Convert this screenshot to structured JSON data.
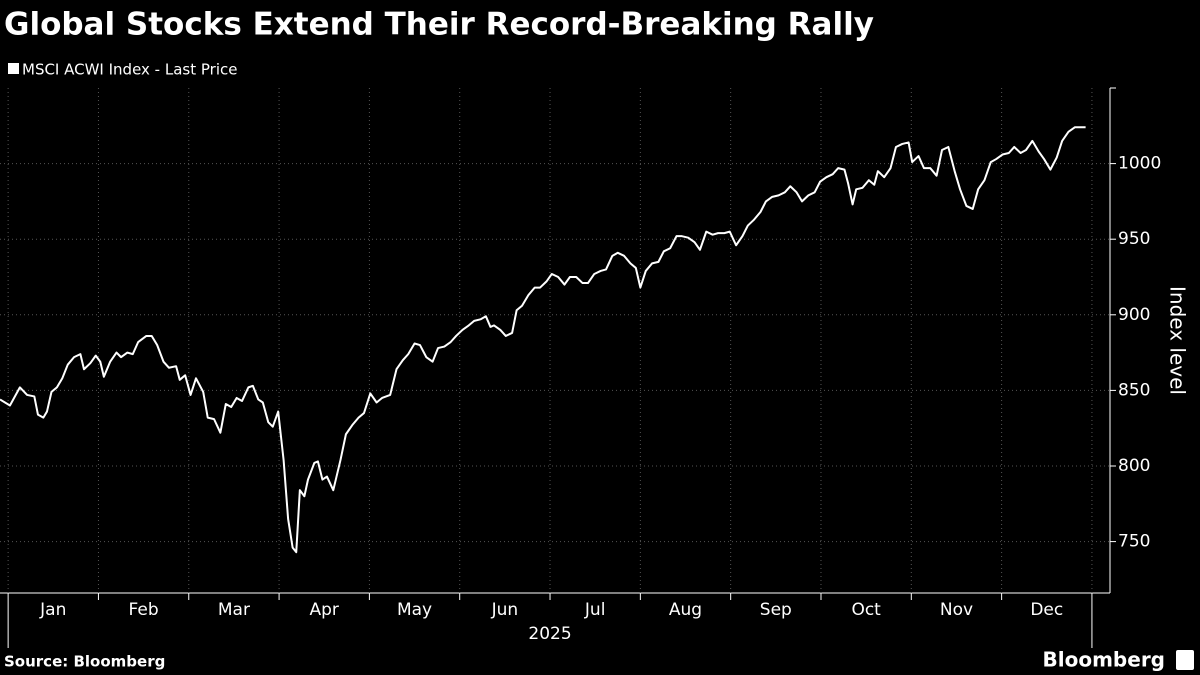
{
  "chart_data": {
    "type": "line",
    "title": "Global Stocks Extend Their Record-Breaking Rally",
    "source": "Source: Bloomberg",
    "brand": "Bloomberg",
    "y_label": "Index level",
    "x_label": "2025",
    "categories": [
      "Jan",
      "Feb",
      "Mar",
      "Apr",
      "May",
      "Jun",
      "Jul",
      "Aug",
      "Sep",
      "Oct",
      "Nov",
      "Dec"
    ],
    "xlim": [
      -0.09,
      12.2
    ],
    "xticks": [
      0,
      1,
      2,
      3,
      4,
      5,
      6,
      7,
      8,
      9,
      10,
      11,
      12
    ],
    "ylim": [
      716,
      1050
    ],
    "yticks": [
      750,
      800,
      850,
      900,
      950,
      1000
    ],
    "grid": true,
    "legend": "top-left",
    "series": [
      {
        "name": "MSCI ACWI Index - Last Price",
        "color": "#ffffff",
        "x": [
          -0.09,
          0.02,
          0.13,
          0.21,
          0.29,
          0.33,
          0.39,
          0.43,
          0.48,
          0.54,
          0.6,
          0.66,
          0.73,
          0.8,
          0.84,
          0.91,
          0.97,
          1.02,
          1.06,
          1.13,
          1.2,
          1.25,
          1.32,
          1.38,
          1.44,
          1.53,
          1.59,
          1.65,
          1.72,
          1.78,
          1.86,
          1.9,
          1.96,
          2.02,
          2.08,
          2.16,
          2.21,
          2.28,
          2.35,
          2.41,
          2.47,
          2.53,
          2.59,
          2.66,
          2.71,
          2.77,
          2.82,
          2.88,
          2.93,
          2.99,
          3.05,
          3.1,
          3.15,
          3.19,
          3.23,
          3.28,
          3.32,
          3.39,
          3.43,
          3.48,
          3.53,
          3.6,
          3.68,
          3.74,
          3.81,
          3.88,
          3.94,
          4.01,
          4.08,
          4.14,
          4.23,
          4.3,
          4.37,
          4.43,
          4.5,
          4.56,
          4.63,
          4.7,
          4.76,
          4.83,
          4.9,
          4.96,
          5.03,
          5.1,
          5.16,
          5.23,
          5.29,
          5.34,
          5.38,
          5.45,
          5.51,
          5.58,
          5.63,
          5.69,
          5.76,
          5.83,
          5.89,
          5.96,
          6.02,
          6.09,
          6.16,
          6.22,
          6.29,
          6.36,
          6.42,
          6.49,
          6.56,
          6.62,
          6.69,
          6.75,
          6.82,
          6.89,
          6.95,
          7.0,
          7.06,
          7.13,
          7.2,
          7.26,
          7.33,
          7.4,
          7.46,
          7.53,
          7.6,
          7.66,
          7.73,
          7.8,
          7.86,
          7.93,
          7.99,
          8.06,
          8.13,
          8.19,
          8.26,
          8.33,
          8.39,
          8.46,
          8.53,
          8.6,
          8.66,
          8.73,
          8.79,
          8.86,
          8.93,
          8.99,
          9.06,
          9.13,
          9.19,
          9.26,
          9.3,
          9.35,
          9.39,
          9.46,
          9.53,
          9.59,
          9.63,
          9.7,
          9.77,
          9.83,
          9.9,
          9.97,
          10.01,
          10.08,
          10.14,
          10.21,
          10.28,
          10.34,
          10.41,
          10.48,
          10.54,
          10.61,
          10.68,
          10.74,
          10.81,
          10.88,
          10.94,
          11.01,
          11.08,
          11.14,
          11.21,
          11.27,
          11.34,
          11.41,
          11.47,
          11.54,
          11.61,
          11.67,
          11.74,
          11.81,
          11.87,
          11.93
        ],
        "values": [
          844,
          840,
          852,
          847,
          846,
          834,
          832,
          836,
          849,
          852,
          858,
          867,
          872,
          874,
          864,
          868,
          873,
          869,
          859,
          869,
          875,
          872,
          875,
          874,
          882,
          886,
          886,
          880,
          869,
          865,
          866,
          857,
          860,
          847,
          858,
          849,
          832,
          831,
          822,
          841,
          839,
          845,
          843,
          852,
          853,
          844,
          842,
          829,
          826,
          836,
          804,
          765,
          746,
          743,
          784,
          780,
          791,
          802,
          803,
          791,
          793,
          784,
          804,
          821,
          827,
          832,
          835,
          848,
          842,
          845,
          847,
          864,
          870,
          874,
          881,
          880,
          872,
          869,
          878,
          879,
          882,
          886,
          890,
          893,
          896,
          897,
          899,
          892,
          893,
          890,
          886,
          888,
          903,
          906,
          913,
          918,
          918,
          922,
          927,
          925,
          920,
          925,
          925,
          921,
          921,
          927,
          929,
          930,
          939,
          941,
          939,
          934,
          931,
          918,
          929,
          934,
          935,
          942,
          944,
          952,
          952,
          951,
          948,
          943,
          955,
          953,
          954,
          954,
          955,
          946,
          952,
          959,
          963,
          968,
          975,
          978,
          979,
          981,
          985,
          981,
          975,
          979,
          981,
          988,
          991,
          993,
          997,
          996,
          987,
          973,
          983,
          984,
          989,
          986,
          995,
          991,
          997,
          1011,
          1013,
          1014,
          1001,
          1005,
          997,
          997,
          992,
          1009,
          1011,
          995,
          983,
          972,
          970,
          983,
          989,
          1001,
          1003,
          1006,
          1007,
          1011,
          1007,
          1009,
          1015,
          1008,
          1003,
          996,
          1004,
          1015,
          1021,
          1024,
          1024,
          1024
        ]
      }
    ]
  }
}
